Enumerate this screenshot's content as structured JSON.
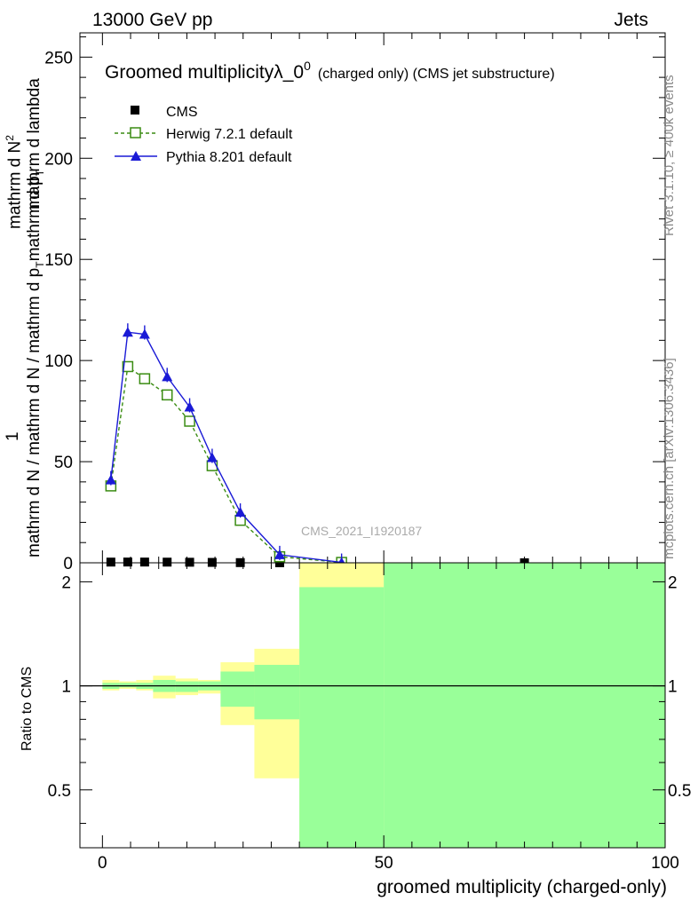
{
  "header": {
    "left": "13000 GeV pp",
    "right": "Jets"
  },
  "side_text": {
    "rivet": "Rivet 3.1.10, ≥ 400k events",
    "mcplots": "mcplots.cern.ch [arXiv:1306.3436]"
  },
  "chart_data": [
    {
      "type": "line",
      "title": "Groomed multiplicityλ_0",
      "title_sup": "0",
      "title_suffix": "(charged only) (CMS jet substructure)",
      "watermark": "CMS_2021_I1920187",
      "ylabel_num": "1",
      "ylabel_den": "mathrm d N / mathrm d N / mathrm d p",
      "ylabel_den_rest": "mathrm d p",
      "ylabel_right": "mathrm d N",
      "ylabel_right_sup": "2",
      "ylabel_extra": "mathrm d p",
      "ylabel_extra_rest": "mathrm d lambda",
      "ylabel_sub": "T",
      "xlim": [
        -4,
        100
      ],
      "ylim": [
        0,
        262
      ],
      "yticks": [
        0,
        50,
        100,
        150,
        200,
        250
      ],
      "legend": [
        {
          "label": "CMS",
          "color": "#000000",
          "marker": "square-filled"
        },
        {
          "label": "Herwig 7.2.1 default",
          "color": "#3a8c12",
          "marker": "square-open"
        },
        {
          "label": "Pythia 8.201 default",
          "color": "#1a1ad6",
          "marker": "triangle"
        }
      ],
      "series": [
        {
          "name": "CMS",
          "x": [
            1.5,
            4.5,
            7.5,
            11.5,
            15.5,
            19.5,
            24.5,
            31.5,
            42.5,
            75
          ],
          "y": [
            0.35,
            0.38,
            0.37,
            0.33,
            0.28,
            0.2,
            0.09,
            0.02,
            0.001,
            0.0001
          ]
        },
        {
          "name": "Herwig 7.2.1 default",
          "x": [
            1.5,
            4.5,
            7.5,
            11.5,
            15.5,
            19.5,
            24.5,
            31.5,
            42.5
          ],
          "y": [
            38,
            97,
            91,
            83,
            70,
            48,
            21,
            3,
            0.2
          ]
        },
        {
          "name": "Pythia 8.201 default",
          "x": [
            1.5,
            4.5,
            7.5,
            11.5,
            15.5,
            19.5,
            24.5,
            31.5,
            42.5
          ],
          "y": [
            41,
            114,
            113,
            92,
            77,
            52,
            25,
            4,
            0.2
          ]
        }
      ]
    },
    {
      "type": "area",
      "ylabel": "Ratio to CMS",
      "xlabel": "groomed multiplicity (charged-only)",
      "xlim": [
        -4,
        100
      ],
      "ylim": [
        0.34,
        2.27
      ],
      "xticks": [
        0,
        50,
        100
      ],
      "yticks": [
        0.5,
        1,
        2
      ],
      "ytick_labels": [
        "0.5",
        "1",
        "2"
      ],
      "bands": [
        {
          "name": "yellow",
          "color": "#ffff99",
          "bins": [
            {
              "x0": 0,
              "x1": 3,
              "lo": 0.97,
              "hi": 1.04
            },
            {
              "x0": 3,
              "x1": 6,
              "lo": 0.98,
              "hi": 1.03
            },
            {
              "x0": 6,
              "x1": 9,
              "lo": 0.97,
              "hi": 1.04
            },
            {
              "x0": 9,
              "x1": 13,
              "lo": 0.92,
              "hi": 1.07
            },
            {
              "x0": 13,
              "x1": 17,
              "lo": 0.94,
              "hi": 1.05
            },
            {
              "x0": 17,
              "x1": 21,
              "lo": 0.95,
              "hi": 1.04
            },
            {
              "x0": 21,
              "x1": 27,
              "lo": 0.77,
              "hi": 1.17
            },
            {
              "x0": 27,
              "x1": 35,
              "lo": 0.54,
              "hi": 1.28
            },
            {
              "x0": 35,
              "x1": 50,
              "lo": 0.34,
              "hi": 2.27
            },
            {
              "x0": 50,
              "x1": 100,
              "lo": 0.34,
              "hi": 2.27
            }
          ]
        },
        {
          "name": "green",
          "color": "#99ff99",
          "bins": [
            {
              "x0": 0,
              "x1": 3,
              "lo": 0.98,
              "hi": 1.02
            },
            {
              "x0": 3,
              "x1": 6,
              "lo": 0.99,
              "hi": 1.02
            },
            {
              "x0": 6,
              "x1": 9,
              "lo": 0.98,
              "hi": 1.02
            },
            {
              "x0": 9,
              "x1": 13,
              "lo": 0.96,
              "hi": 1.04
            },
            {
              "x0": 13,
              "x1": 17,
              "lo": 0.96,
              "hi": 1.03
            },
            {
              "x0": 17,
              "x1": 21,
              "lo": 0.97,
              "hi": 1.03
            },
            {
              "x0": 21,
              "x1": 27,
              "lo": 0.87,
              "hi": 1.1
            },
            {
              "x0": 27,
              "x1": 35,
              "lo": 0.8,
              "hi": 1.15
            },
            {
              "x0": 35,
              "x1": 50,
              "lo": 0.34,
              "hi": 1.93
            },
            {
              "x0": 50,
              "x1": 100,
              "lo": 0.34,
              "hi": 2.27
            }
          ]
        }
      ]
    }
  ]
}
